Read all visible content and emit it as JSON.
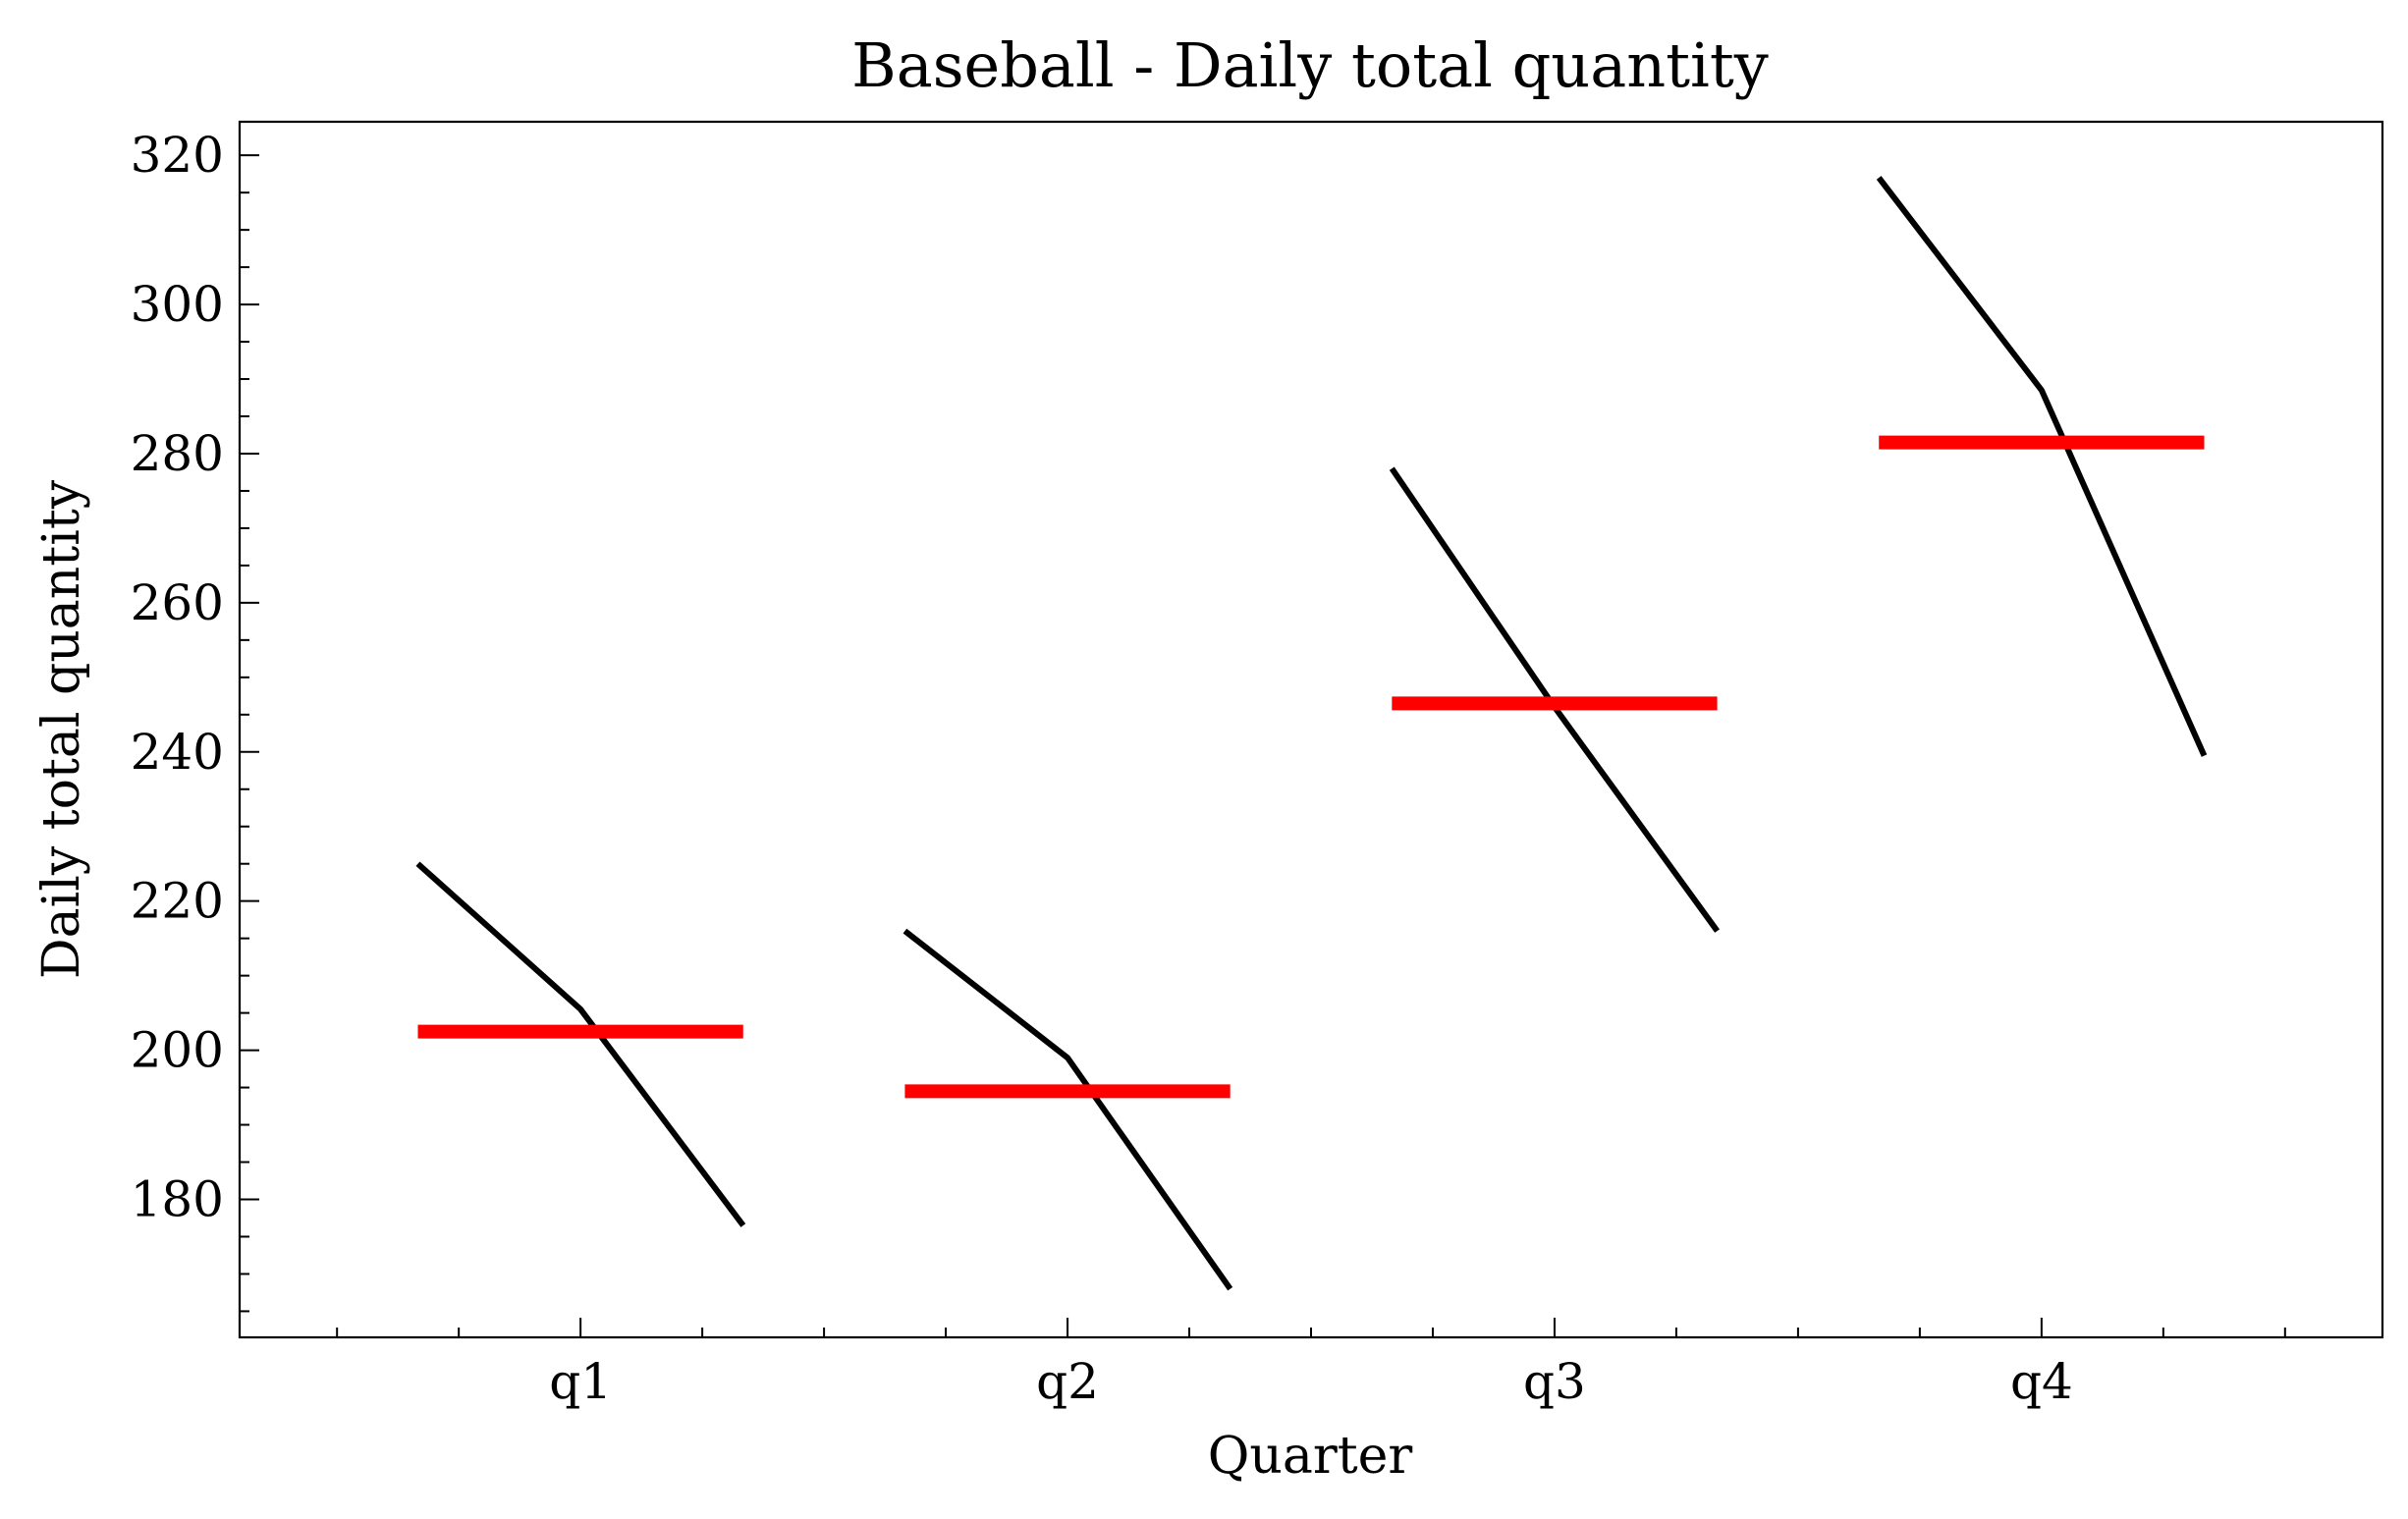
{
  "chart_data": {
    "type": "line",
    "title": "Baseball - Daily total quantity",
    "xlabel": "Quarter",
    "ylabel": "Daily total quantity",
    "categories": [
      "q1",
      "q2",
      "q3",
      "q4"
    ],
    "ylim": [
      161.5,
      324.5
    ],
    "yticks": [
      180,
      200,
      220,
      240,
      260,
      280,
      300,
      320
    ],
    "grid": false,
    "legend": "none",
    "series": [
      {
        "values": [
          [
            225,
            205.5,
            176.5
          ],
          [
            216,
            199,
            168
          ],
          [
            278,
            246,
            216
          ],
          [
            317,
            288.5,
            239.5
          ]
        ]
      }
    ],
    "means": [
      202.5,
      194.5,
      246.5,
      281.5
    ],
    "colors": {
      "line": "#000000",
      "mean": "#ff0000"
    }
  }
}
